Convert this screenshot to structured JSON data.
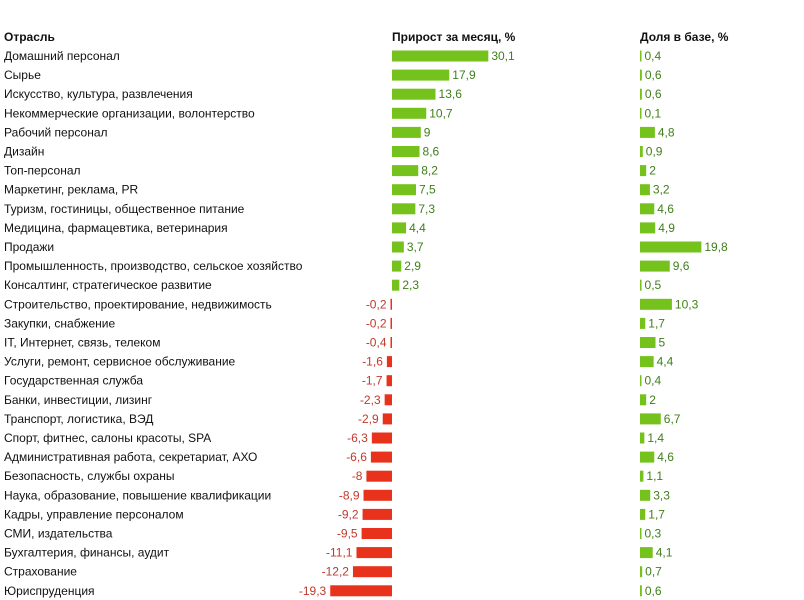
{
  "chart_data": {
    "type": "bar",
    "headers": {
      "category": "Отрасль",
      "growth": "Прирост за месяц, %",
      "share": "Доля в базе, %"
    },
    "colors": {
      "positive": "#75c21c",
      "negative": "#e8321c",
      "share": "#75c21c"
    },
    "rows": [
      {
        "category": "Домашний персонал",
        "growth": 30.1,
        "growth_label": "30,1",
        "share": 0.4,
        "share_label": "0,4"
      },
      {
        "category": "Сырье",
        "growth": 17.9,
        "growth_label": "17,9",
        "share": 0.6,
        "share_label": "0,6"
      },
      {
        "category": "Искусство, культура, развлечения",
        "growth": 13.6,
        "growth_label": "13,6",
        "share": 0.6,
        "share_label": "0,6"
      },
      {
        "category": "Некоммерческие организации, волонтерство",
        "growth": 10.7,
        "growth_label": "10,7",
        "share": 0.1,
        "share_label": "0,1"
      },
      {
        "category": "Рабочий персонал",
        "growth": 9,
        "growth_label": "9",
        "share": 4.8,
        "share_label": "4,8"
      },
      {
        "category": "Дизайн",
        "growth": 8.6,
        "growth_label": "8,6",
        "share": 0.9,
        "share_label": "0,9"
      },
      {
        "category": "Топ-персонал",
        "growth": 8.2,
        "growth_label": "8,2",
        "share": 2,
        "share_label": "2"
      },
      {
        "category": "Маркетинг, реклама, PR",
        "growth": 7.5,
        "growth_label": "7,5",
        "share": 3.2,
        "share_label": "3,2"
      },
      {
        "category": "Туризм, гостиницы, общественное питание",
        "growth": 7.3,
        "growth_label": "7,3",
        "share": 4.6,
        "share_label": "4,6"
      },
      {
        "category": "Медицина, фармацевтика, ветеринария",
        "growth": 4.4,
        "growth_label": "4,4",
        "share": 4.9,
        "share_label": "4,9"
      },
      {
        "category": "Продажи",
        "growth": 3.7,
        "growth_label": "3,7",
        "share": 19.8,
        "share_label": "19,8"
      },
      {
        "category": "Промышленность, производство, сельское хозяйство",
        "growth": 2.9,
        "growth_label": "2,9",
        "share": 9.6,
        "share_label": "9,6"
      },
      {
        "category": "Консалтинг, стратегическое развитие",
        "growth": 2.3,
        "growth_label": "2,3",
        "share": 0.5,
        "share_label": "0,5"
      },
      {
        "category": "Строительство, проектирование, недвижимость",
        "growth": -0.2,
        "growth_label": "-0,2",
        "share": 10.3,
        "share_label": "10,3"
      },
      {
        "category": "Закупки, снабжение",
        "growth": -0.2,
        "growth_label": "-0,2",
        "share": 1.7,
        "share_label": "1,7"
      },
      {
        "category": "IT, Интернет, связь, телеком",
        "growth": -0.4,
        "growth_label": "-0,4",
        "share": 5,
        "share_label": "5"
      },
      {
        "category": "Услуги, ремонт, сервисное обслуживание",
        "growth": -1.6,
        "growth_label": "-1,6",
        "share": 4.4,
        "share_label": "4,4"
      },
      {
        "category": "Государственная служба",
        "growth": -1.7,
        "growth_label": "-1,7",
        "share": 0.4,
        "share_label": "0,4"
      },
      {
        "category": "Банки, инвестиции, лизинг",
        "growth": -2.3,
        "growth_label": "-2,3",
        "share": 2,
        "share_label": "2"
      },
      {
        "category": "Транспорт, логистика, ВЭД",
        "growth": -2.9,
        "growth_label": "-2,9",
        "share": 6.7,
        "share_label": "6,7"
      },
      {
        "category": "Спорт, фитнес, салоны красоты, SPA",
        "growth": -6.3,
        "growth_label": "-6,3",
        "share": 1.4,
        "share_label": "1,4"
      },
      {
        "category": "Административная работа, секретариат, АХО",
        "growth": -6.6,
        "growth_label": "-6,6",
        "share": 4.6,
        "share_label": "4,6"
      },
      {
        "category": "Безопасность, службы охраны",
        "growth": -8,
        "growth_label": "-8",
        "share": 1.1,
        "share_label": "1,1"
      },
      {
        "category": "Наука, образование, повышение квалификации",
        "growth": -8.9,
        "growth_label": "-8,9",
        "share": 3.3,
        "share_label": "3,3"
      },
      {
        "category": "Кадры, управление персоналом",
        "growth": -9.2,
        "growth_label": "-9,2",
        "share": 1.7,
        "share_label": "1,7"
      },
      {
        "category": "СМИ, издательства",
        "growth": -9.5,
        "growth_label": "-9,5",
        "share": 0.3,
        "share_label": "0,3"
      },
      {
        "category": "Бухгалтерия, финансы, аудит",
        "growth": -11.1,
        "growth_label": "-11,1",
        "share": 4.1,
        "share_label": "4,1"
      },
      {
        "category": "Страхование",
        "growth": -12.2,
        "growth_label": "-12,2",
        "share": 0.7,
        "share_label": "0,7"
      },
      {
        "category": "Юриспруденция",
        "growth": -19.3,
        "growth_label": "-19,3",
        "share": 0.6,
        "share_label": "0,6"
      }
    ]
  }
}
